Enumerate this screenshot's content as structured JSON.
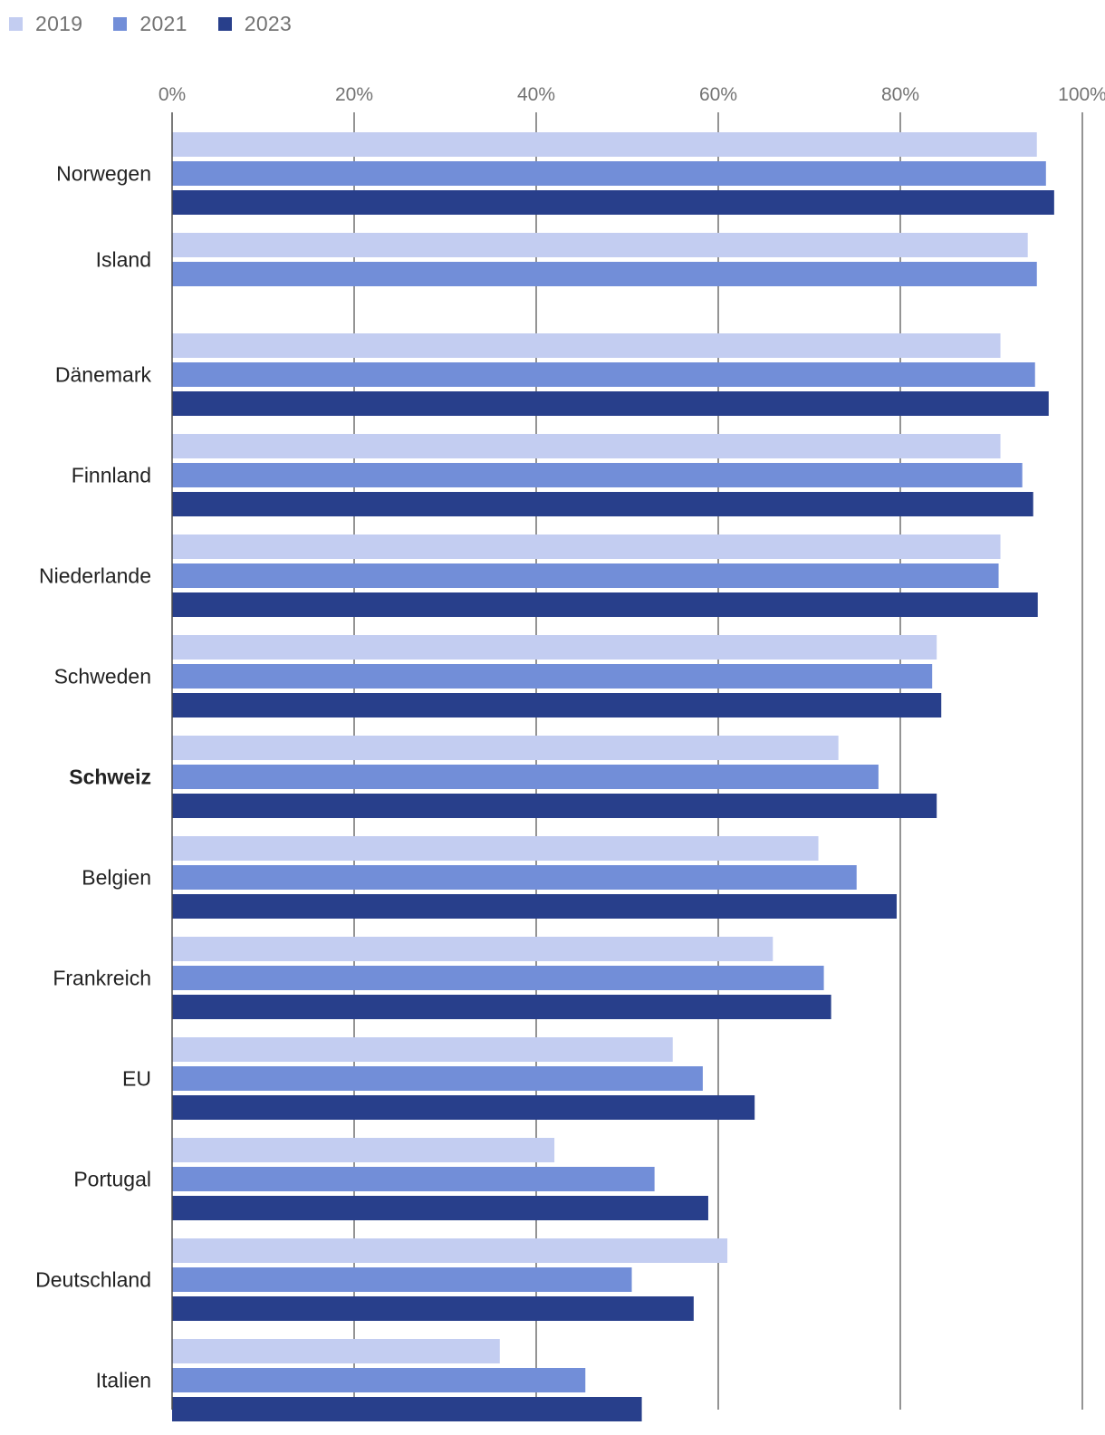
{
  "chart_data": {
    "type": "bar",
    "orientation": "horizontal",
    "title": "",
    "xlabel": "",
    "ylabel": "",
    "xlim": [
      0,
      100
    ],
    "x_ticks": [
      "0%",
      "20%",
      "40%",
      "60%",
      "80%",
      "100%"
    ],
    "grid": true,
    "legend_position": "top-left",
    "highlighted_category": "Schweiz",
    "categories": [
      "Norwegen",
      "Island",
      "Dänemark",
      "Finnland",
      "Niederlande",
      "Schweden",
      "Schweiz",
      "Belgien",
      "Frankreich",
      "EU",
      "Portugal",
      "Deutschland",
      "Italien"
    ],
    "series": [
      {
        "name": "2019",
        "color": "#c3cdf1",
        "values": [
          95.0,
          94.0,
          91.0,
          91.0,
          91.0,
          84.0,
          73.2,
          71.0,
          66.0,
          55.0,
          42.0,
          61.0,
          36.0
        ]
      },
      {
        "name": "2021",
        "color": "#728ed8",
        "values": [
          96.0,
          95.0,
          94.8,
          93.4,
          90.8,
          83.5,
          77.6,
          75.2,
          71.6,
          58.3,
          53.0,
          50.5,
          45.4
        ]
      },
      {
        "name": "2023",
        "color": "#283f8b",
        "values": [
          96.9,
          null,
          96.3,
          94.6,
          95.1,
          84.5,
          84.0,
          79.6,
          72.4,
          64.0,
          58.9,
          57.3,
          51.6
        ]
      }
    ]
  }
}
